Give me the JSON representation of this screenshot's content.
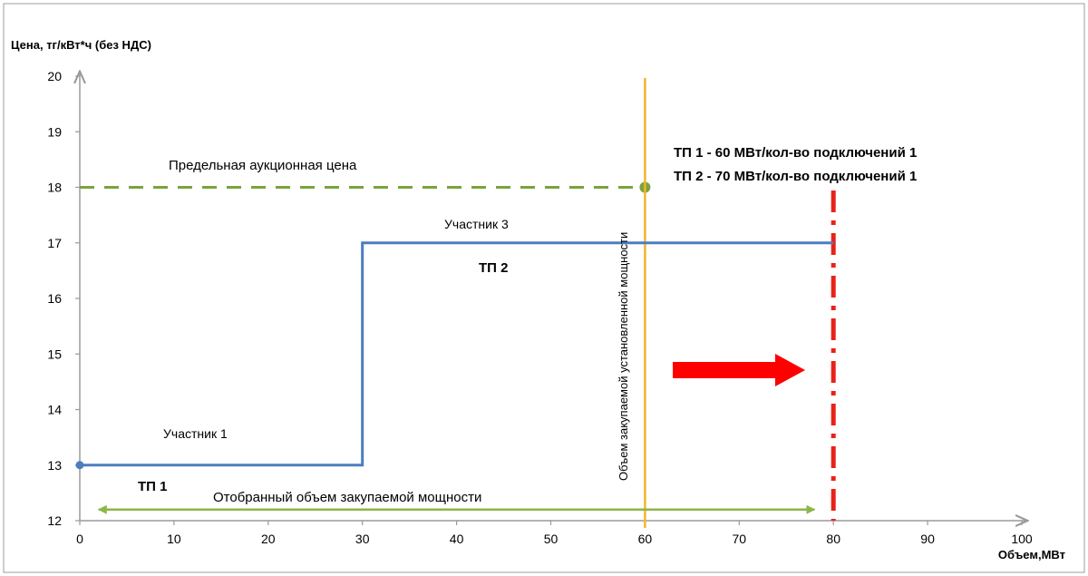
{
  "chart_data": {
    "type": "line",
    "title": "",
    "ylabel": "Цена, тг/кВт*ч (без НДС)",
    "xlabel": "Объем,МВт",
    "xlim": [
      0,
      100
    ],
    "ylim": [
      12,
      20
    ],
    "x_ticks": [
      0,
      10,
      20,
      30,
      40,
      50,
      60,
      70,
      80,
      90,
      100
    ],
    "y_ticks": [
      12,
      13,
      14,
      15,
      16,
      17,
      18,
      19,
      20
    ],
    "grid": false,
    "series": [
      {
        "name": "",
        "kind": "step",
        "color": "#4a7ebf",
        "points": [
          [
            0,
            13
          ],
          [
            30,
            13
          ],
          [
            30,
            17
          ],
          [
            80,
            17
          ]
        ]
      }
    ],
    "reference_lines": [
      {
        "label": "Предельная аукционная цена",
        "orientation": "horizontal",
        "y": 18,
        "x_end": 60,
        "style": "dashed",
        "color": "#7aa33c"
      },
      {
        "label": "Объем закупаемой установленной мощности",
        "orientation": "vertical",
        "x": 60,
        "style": "solid",
        "color": "#f2b52c"
      },
      {
        "label": "",
        "orientation": "vertical",
        "x": 80,
        "style": "dash-dot",
        "color": "#e8221a"
      }
    ],
    "span_arrow": {
      "label": "Отобранный объем закупаемой мощности",
      "x_from": 2,
      "x_to": 78,
      "y": 12.2,
      "color": "#8db64a"
    },
    "annotations": {
      "participant1": "Участник 1",
      "participant3": "Участник 3",
      "tp1": "ТП 1",
      "tp2": "ТП 2",
      "info_line1": "ТП 1 - 60 МВт/кол-во подключений 1",
      "info_line2": "ТП 2 - 70 МВт/кол-во подключений 1"
    },
    "direction_arrow": {
      "color": "#ff0000"
    }
  }
}
